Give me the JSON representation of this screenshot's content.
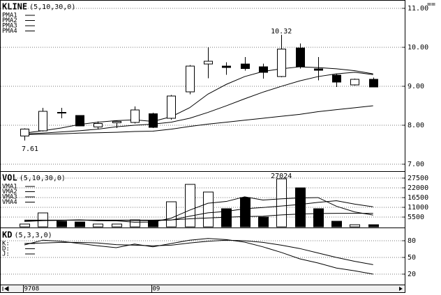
{
  "chart_data": [
    {
      "type": "candlestick",
      "title": "KLINE",
      "subtitle": "(5,10,30,0)",
      "categories": [
        "9708",
        null,
        null,
        null,
        null,
        null,
        null,
        "09",
        null,
        null,
        null,
        null,
        null,
        null,
        null,
        null,
        null,
        null,
        null,
        null
      ],
      "open": [
        7.72,
        7.86,
        8.33,
        8.25,
        7.96,
        8.06,
        8.07,
        8.3,
        8.18,
        8.86,
        9.57,
        9.52,
        9.57,
        9.5,
        9.25,
        9.98,
        9.45,
        9.29,
        9.04,
        9.18
      ],
      "high": [
        7.92,
        8.45,
        8.45,
        8.25,
        8.1,
        8.13,
        8.48,
        8.32,
        8.78,
        9.55,
        10.0,
        9.62,
        9.75,
        9.58,
        10.32,
        10.1,
        9.75,
        9.32,
        9.2,
        9.22
      ],
      "low": [
        7.61,
        7.84,
        8.18,
        7.98,
        7.9,
        7.93,
        8.05,
        7.93,
        8.14,
        8.8,
        9.21,
        9.3,
        9.4,
        9.2,
        9.23,
        9.46,
        9.15,
        8.98,
        9.02,
        8.98
      ],
      "close": [
        7.9,
        8.36,
        8.31,
        7.98,
        8.05,
        8.1,
        8.39,
        7.95,
        8.75,
        9.52,
        9.64,
        9.48,
        9.46,
        9.36,
        9.96,
        9.5,
        9.41,
        9.11,
        9.18,
        8.98
      ],
      "series": [
        {
          "name": "PMA1",
          "color": "#000000",
          "values": [
            7.8,
            7.86,
            7.93,
            8.02,
            8.08,
            8.12,
            8.14,
            8.1,
            8.22,
            8.45,
            8.8,
            9.05,
            9.25,
            9.38,
            9.45,
            9.5,
            9.48,
            9.45,
            9.4,
            9.32
          ]
        },
        {
          "name": "PMA2",
          "color": "#000000",
          "values": [
            7.78,
            7.8,
            7.83,
            7.86,
            7.9,
            7.96,
            8.0,
            8.03,
            8.08,
            8.18,
            8.33,
            8.5,
            8.68,
            8.85,
            9.0,
            9.14,
            9.25,
            9.32,
            9.36,
            9.3
          ]
        },
        {
          "name": "PMA3",
          "color": "#000000",
          "values": [
            7.76,
            7.77,
            7.78,
            7.8,
            7.81,
            7.82,
            7.84,
            7.85,
            7.9,
            7.97,
            8.03,
            8.08,
            8.13,
            8.18,
            8.23,
            8.28,
            8.35,
            8.4,
            8.45,
            8.5
          ]
        },
        {
          "name": "PMA4",
          "color": "#000000",
          "values": [
            null,
            null,
            null,
            null,
            null,
            null,
            null,
            null,
            null,
            null,
            null,
            null,
            null,
            null,
            null,
            null,
            null,
            null,
            null,
            null
          ]
        }
      ],
      "ylim": [
        6.84,
        11.18
      ],
      "yticks": [
        {
          "value": 11,
          "label": "11.00"
        },
        {
          "value": 10,
          "label": "10.00"
        },
        {
          "value": 9,
          "label": "9.00"
        },
        {
          "value": 8,
          "label": "8.00"
        },
        {
          "value": 7,
          "label": "7.00"
        }
      ],
      "grid": true
    },
    {
      "type": "bar",
      "title": "VOL",
      "subtitle": "(5,10,30,0)",
      "values": [
        1570,
        7860,
        3140,
        2750,
        1570,
        1570,
        3930,
        3140,
        14140,
        23960,
        19640,
        10210,
        16500,
        5500,
        27024,
        22000,
        10210,
        3140,
        1180,
        1180
      ],
      "series": [
        {
          "name": "VMA1",
          "color": "#000000",
          "values": [
            3000,
            3500,
            3700,
            3900,
            3400,
            3400,
            2600,
            2700,
            4900,
            9400,
            13300,
            14300,
            16900,
            15100,
            15800,
            16300,
            16500,
            11600,
            8400,
            6600
          ]
        },
        {
          "name": "VMA2",
          "color": "#000000",
          "values": [
            3500,
            3600,
            3700,
            3800,
            3800,
            3700,
            3600,
            3500,
            3800,
            6000,
            7900,
            8700,
            10200,
            10900,
            11700,
            12600,
            13800,
            14700,
            12800,
            11300
          ]
        },
        {
          "name": "VMA3",
          "color": "#000000",
          "values": [
            3800,
            3800,
            3800,
            3800,
            3800,
            3800,
            3800,
            3800,
            3900,
            4500,
            5000,
            5400,
            5800,
            6000,
            6700,
            7200,
            7500,
            7600,
            7600,
            7600
          ]
        },
        {
          "name": "VMA4",
          "color": "#000000",
          "values": [
            null,
            null,
            null,
            null,
            null,
            null,
            null,
            null,
            null,
            null,
            null,
            null,
            null,
            null,
            null,
            null,
            null,
            null,
            null,
            null
          ]
        }
      ],
      "ylim": [
        0,
        30600
      ],
      "yticks": [
        27500,
        22000,
        16500,
        11000,
        5500
      ],
      "grid": true
    },
    {
      "type": "line",
      "title": "KD",
      "subtitle": "(5,3,3,0)",
      "series": [
        {
          "name": "K:",
          "color": "#000000",
          "values": [
            72.5,
            81,
            79,
            75,
            71,
            67.5,
            74,
            69,
            75,
            81,
            84,
            82,
            77.5,
            69,
            59,
            47.5,
            40,
            31,
            26,
            20
          ]
        },
        {
          "name": "D:",
          "color": "#000000",
          "values": [
            75,
            76,
            77,
            77,
            76,
            73,
            72,
            71,
            72,
            76,
            79,
            81,
            80,
            77,
            72,
            66,
            58,
            50,
            43,
            37
          ]
        },
        {
          "name": "J:",
          "color": "#000000",
          "values": [
            null,
            null,
            null,
            null,
            null,
            null,
            null,
            null,
            null,
            null,
            null,
            null,
            null,
            null,
            null,
            null,
            null,
            null,
            null,
            null
          ]
        }
      ],
      "ylim": [
        2.5,
        100
      ],
      "yticks": [
        80,
        50,
        20
      ],
      "grid": true
    }
  ]
}
